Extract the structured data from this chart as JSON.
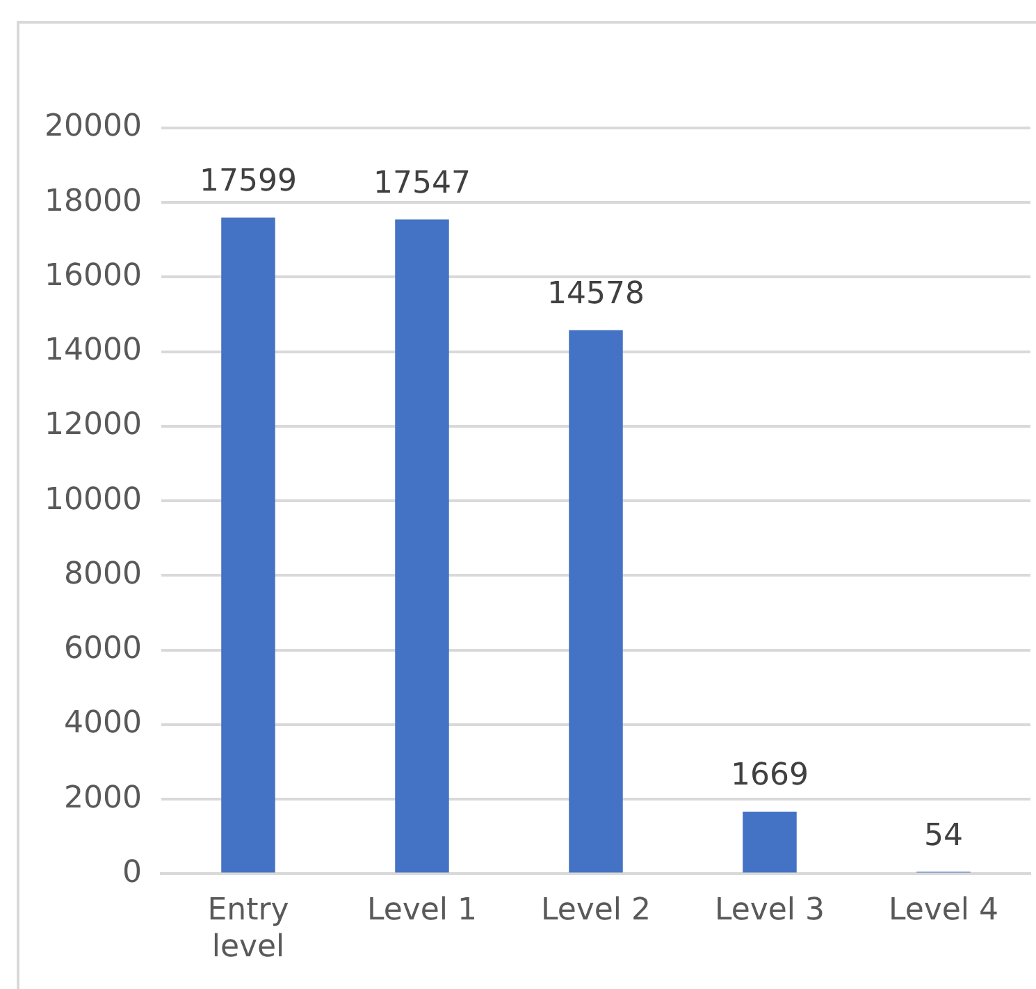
{
  "chart_data": {
    "type": "bar",
    "categories": [
      "Entry level",
      "Level 1",
      "Level 2",
      "Level 3",
      "Level 4"
    ],
    "values": [
      17599,
      17547,
      14578,
      1669,
      54
    ],
    "color": "#4472c4",
    "ylim": [
      0,
      20000
    ],
    "yticks": [
      0,
      2000,
      4000,
      6000,
      8000,
      10000,
      12000,
      14000,
      16000,
      18000,
      20000
    ],
    "grid": "y",
    "data_labels": true
  }
}
